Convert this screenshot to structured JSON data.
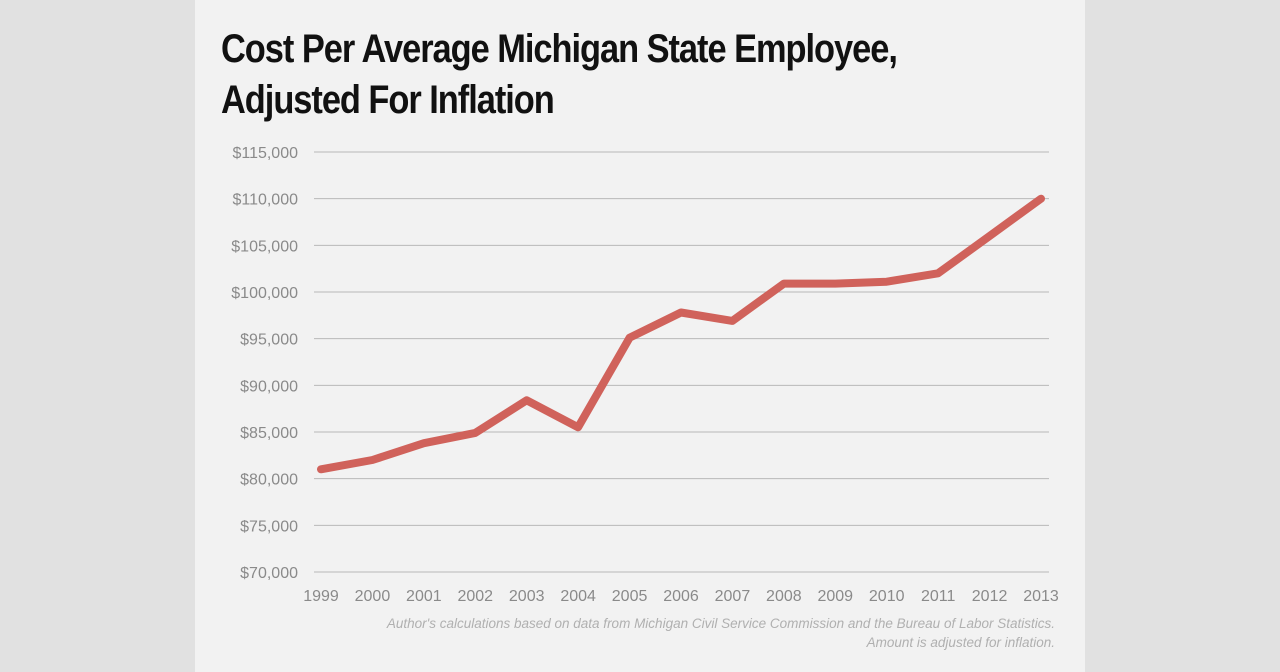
{
  "chart_data": {
    "type": "line",
    "title": [
      "Cost Per Average Michigan State Employee,",
      "Adjusted For Inflation"
    ],
    "xlabel": "",
    "ylabel": "",
    "categories": [
      "1999",
      "2000",
      "2001",
      "2002",
      "2003",
      "2004",
      "2005",
      "2006",
      "2007",
      "2008",
      "2009",
      "2010",
      "2011",
      "2012",
      "2013"
    ],
    "series": [
      {
        "name": "Cost per employee",
        "values": [
          81000,
          82000,
          83800,
          84900,
          88400,
          85500,
          95100,
          97800,
          96900,
          100900,
          100900,
          101100,
          102000,
          106000,
          110000
        ]
      }
    ],
    "ylim": [
      70000,
      115000
    ],
    "yticks": [
      70000,
      75000,
      80000,
      85000,
      90000,
      95000,
      100000,
      105000,
      110000,
      115000
    ],
    "ytick_labels": [
      "$70,000",
      "$75,000",
      "$80,000",
      "$85,000",
      "$90,000",
      "$95,000",
      "$100,000",
      "$105,000",
      "$110,000",
      "$115,000"
    ],
    "grid": true,
    "line_color": "#d0625b",
    "source_note": [
      "Author's calculations based on data from Michigan Civil Service Commission and the Bureau of Labor Statistics.",
      "Amount is adjusted for inflation."
    ]
  }
}
